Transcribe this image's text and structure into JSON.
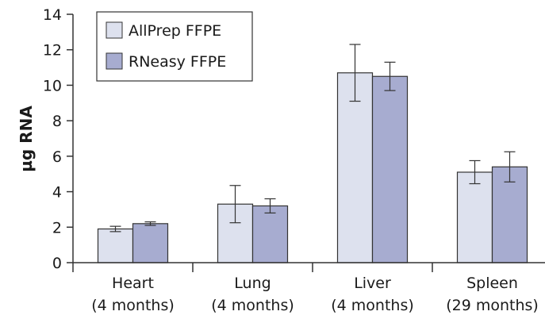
{
  "chart_data": {
    "type": "bar",
    "ylabel": "µg RNA",
    "xlabel": "",
    "ylim": [
      0,
      14
    ],
    "yticks": [
      0,
      2,
      4,
      6,
      8,
      10,
      12,
      14
    ],
    "categories": [
      {
        "line1": "Heart",
        "line2": "(4 months)"
      },
      {
        "line1": "Lung",
        "line2": "(4 months)"
      },
      {
        "line1": "Liver",
        "line2": "(4 months)"
      },
      {
        "line1": "Spleen",
        "line2": "(29 months)"
      }
    ],
    "series": [
      {
        "name": "AllPrep FFPE",
        "color": "#dde1ee",
        "values": [
          1.9,
          3.3,
          10.7,
          5.1
        ],
        "errors": [
          0.15,
          1.05,
          1.6,
          0.65
        ]
      },
      {
        "name": "RNeasy FFPE",
        "color": "#a7acd0",
        "values": [
          2.2,
          3.2,
          10.5,
          5.4
        ],
        "errors": [
          0.1,
          0.4,
          0.8,
          0.85
        ]
      }
    ],
    "legend_position": "top-left",
    "grid": false
  }
}
